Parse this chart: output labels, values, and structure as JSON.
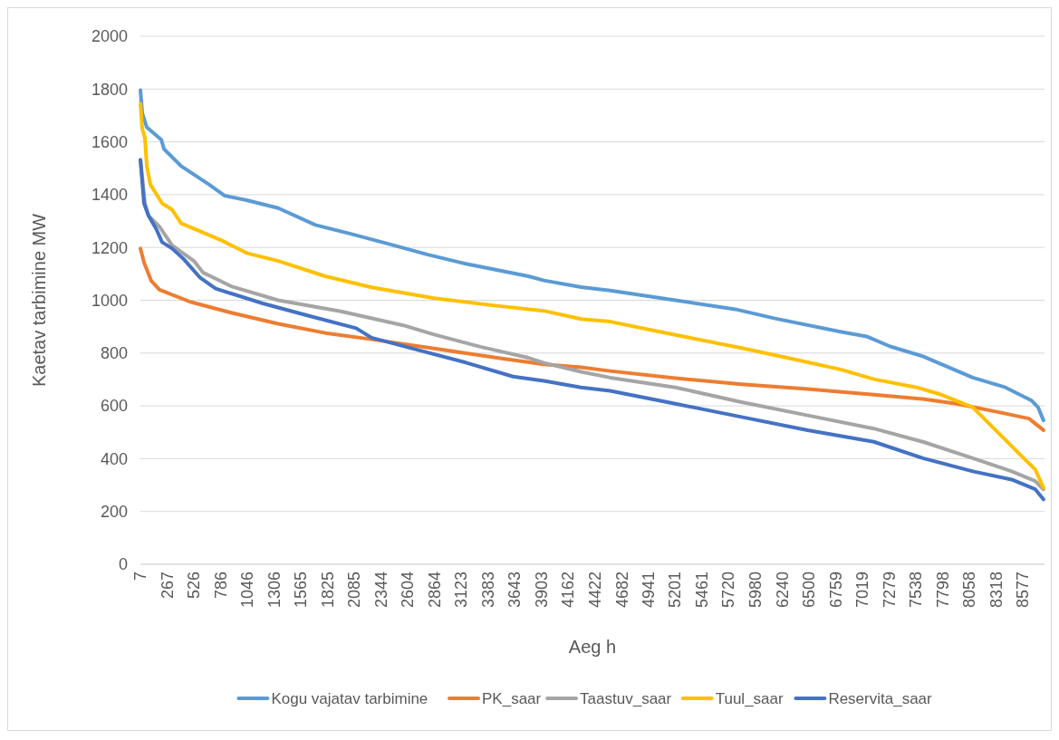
{
  "chart_data": {
    "type": "line",
    "xlabel": "Aeg h",
    "ylabel": "Kaetav tarbimine MW",
    "xlim": [
      7,
      8790
    ],
    "xticks": [
      7,
      267,
      526,
      786,
      1046,
      1306,
      1565,
      1825,
      2085,
      2344,
      2604,
      2864,
      3123,
      3383,
      3643,
      3903,
      4162,
      4422,
      4682,
      4941,
      5201,
      5461,
      5720,
      5980,
      6240,
      6500,
      6759,
      7019,
      7279,
      7538,
      7798,
      8058,
      8318,
      8577
    ],
    "ylim": [
      0,
      2000
    ],
    "yticks": [
      0,
      200,
      400,
      600,
      800,
      1000,
      1200,
      1400,
      1600,
      1800,
      2000
    ],
    "grid": "y",
    "legend": "bottom",
    "marker": "none",
    "line_style": "solid",
    "series": [
      {
        "name": "Kogu vajatav tarbimine",
        "color": "#5b9bd5",
        "x": [
          7,
          25,
          69,
          210,
          236,
          403,
          676,
          826,
          1038,
          1346,
          1707,
          2015,
          2412,
          2799,
          3169,
          3777,
          3927,
          4288,
          4570,
          5204,
          5785,
          6173,
          6807,
          7062,
          7291,
          7608,
          8093,
          8410,
          8665,
          8727,
          8780
        ],
        "values": [
          1796,
          1708,
          1655,
          1608,
          1573,
          1508,
          1438,
          1396,
          1379,
          1349,
          1285,
          1255,
          1214,
          1173,
          1138,
          1091,
          1075,
          1050,
          1037,
          1000,
          966,
          931,
          881,
          863,
          825,
          788,
          707,
          670,
          620,
          595,
          545
        ]
      },
      {
        "name": "PK_saar",
        "color": "#ed7d31",
        "x": [
          7,
          42,
          113,
          192,
          491,
          888,
          1346,
          1804,
          2253,
          2861,
          3469,
          3927,
          4288,
          4570,
          5204,
          5847,
          6490,
          7132,
          7608,
          7934,
          8348,
          8639,
          8780
        ],
        "values": [
          1196,
          1143,
          1073,
          1040,
          994,
          953,
          911,
          876,
          852,
          817,
          782,
          757,
          746,
          732,
          705,
          682,
          664,
          642,
          626,
          608,
          576,
          552,
          508
        ]
      },
      {
        "name": "Taastuv_saar",
        "color": "#a5a5a5",
        "x": [
          7,
          51,
          86,
          192,
          315,
          527,
          615,
          888,
          1346,
          1954,
          2561,
          2861,
          3319,
          3777,
          3927,
          4288,
          4570,
          5204,
          5847,
          6490,
          7132,
          7608,
          8093,
          8471,
          8700,
          8780
        ],
        "values": [
          1532,
          1367,
          1320,
          1279,
          1208,
          1149,
          1105,
          1053,
          1000,
          958,
          905,
          870,
          823,
          782,
          763,
          729,
          707,
          670,
          614,
          564,
          514,
          464,
          402,
          352,
          315,
          284
        ]
      },
      {
        "name": "Tuul_saar",
        "color": "#ffc000",
        "x": [
          7,
          25,
          51,
          69,
          104,
          218,
          315,
          403,
          588,
          800,
          1038,
          1346,
          1804,
          2253,
          2861,
          3469,
          3927,
          4288,
          4570,
          5204,
          5847,
          6331,
          6807,
          7132,
          7547,
          7767,
          8093,
          8251,
          8410,
          8603,
          8700,
          8780
        ],
        "values": [
          1744,
          1649,
          1614,
          1508,
          1438,
          1367,
          1343,
          1291,
          1261,
          1226,
          1179,
          1149,
          1091,
          1049,
          1008,
          979,
          960,
          929,
          919,
          869,
          819,
          779,
          738,
          701,
          670,
          645,
          595,
          533,
          471,
          396,
          359,
          290
        ]
      },
      {
        "name": "Reservita_saar",
        "color": "#4472c4",
        "x": [
          7,
          25,
          42,
          86,
          157,
          218,
          315,
          430,
          588,
          738,
          1196,
          1645,
          2103,
          2253,
          2711,
          3169,
          3627,
          3927,
          4288,
          4570,
          5204,
          5847,
          6490,
          7132,
          7608,
          8093,
          8471,
          8700,
          8780
        ],
        "values": [
          1532,
          1449,
          1367,
          1320,
          1273,
          1220,
          1196,
          1155,
          1085,
          1044,
          988,
          941,
          894,
          858,
          811,
          764,
          711,
          695,
          670,
          657,
          608,
          558,
          508,
          464,
          402,
          352,
          321,
          284,
          246
        ]
      }
    ]
  }
}
